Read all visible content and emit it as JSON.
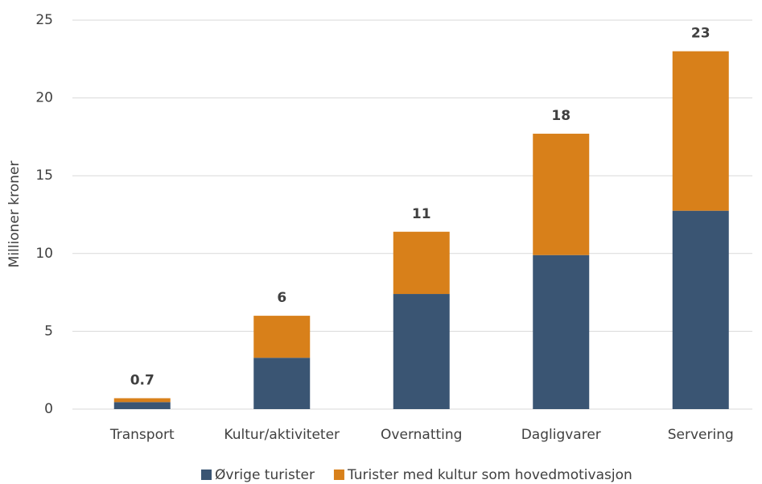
{
  "chart_data": {
    "type": "stacked_bar",
    "y_label": "Millioner kroner",
    "categories": [
      "Transport",
      "Kultur/aktiviteter",
      "Overnatting",
      "Dagligvarer",
      "Servering"
    ],
    "series": [
      {
        "name": "Øvrige turister",
        "color": "#3a5573",
        "values": [
          0.45,
          3.3,
          7.4,
          9.9,
          12.75
        ]
      },
      {
        "name": "Turister med kultur som hovedmotivasjon",
        "color": "#d8801a",
        "values": [
          0.25,
          2.7,
          4.0,
          7.8,
          10.25
        ]
      }
    ],
    "totals": {
      "values": [
        0.7,
        6.0,
        11.4,
        17.7,
        23.0
      ],
      "value_labels": [
        "0.7",
        "6",
        "11",
        "18",
        "23"
      ]
    },
    "ylim": [
      0,
      25
    ],
    "yticks": [
      0,
      5,
      10,
      15,
      20,
      25
    ],
    "grid": true,
    "legend": "bottom"
  }
}
